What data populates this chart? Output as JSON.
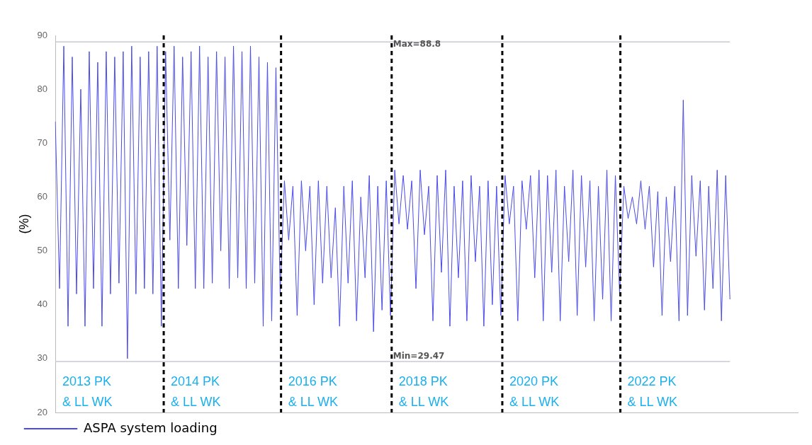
{
  "chart_data": {
    "type": "line",
    "ylabel": "(%)",
    "ylim": [
      20,
      90
    ],
    "yticks": [
      20,
      30,
      40,
      50,
      60,
      70,
      80,
      90
    ],
    "grid": false,
    "legend": "bottom left",
    "tick_labels": "y",
    "marker": "none",
    "categories": [
      null,
      null,
      null,
      null,
      null,
      null,
      null,
      null,
      null,
      null,
      null,
      null,
      null,
      null,
      null,
      null,
      null,
      null,
      null,
      null,
      null,
      null,
      null,
      null,
      null,
      null,
      null,
      null,
      null,
      null,
      null,
      null,
      null,
      null,
      null,
      null,
      null,
      null,
      null,
      null,
      null,
      null,
      null,
      null,
      null,
      null,
      null,
      null,
      null,
      null,
      null,
      null,
      null,
      null,
      null,
      null,
      null,
      null,
      null,
      null,
      null,
      null,
      null,
      null,
      null,
      null,
      null,
      null,
      null,
      null,
      null,
      null,
      null,
      null,
      null,
      null,
      null,
      null,
      null,
      null,
      null,
      null,
      null,
      null,
      null,
      null,
      null,
      null,
      null,
      null,
      null,
      null,
      null,
      null,
      null,
      null,
      null,
      null,
      null,
      null,
      null,
      null,
      null,
      null,
      null,
      null,
      null,
      null,
      null,
      null,
      null,
      null,
      null,
      null,
      null,
      null,
      null,
      null,
      null,
      null,
      null,
      null,
      null,
      null,
      null,
      null,
      null,
      null,
      null,
      null,
      null,
      null,
      null,
      null,
      null,
      null,
      null,
      null,
      null,
      null,
      null,
      null,
      null,
      null,
      null,
      null,
      null,
      null,
      null,
      null,
      null,
      null,
      null,
      null,
      null,
      null,
      null,
      null,
      null,
      null,
      null,
      null,
      null,
      null,
      null,
      null,
      null,
      null,
      null,
      null,
      null,
      null,
      null,
      null,
      null,
      null
    ],
    "series": [
      {
        "name": "ASPA system loading",
        "color": "#4a4ae8",
        "values": [
          74,
          43,
          88,
          36,
          86,
          42,
          80,
          36,
          87,
          43,
          85,
          36,
          87,
          42,
          86,
          44,
          87,
          30,
          88,
          42,
          86,
          43,
          87,
          42,
          88,
          36,
          87,
          52,
          88,
          43,
          86,
          51,
          87,
          43,
          88,
          43,
          86,
          44,
          87,
          50,
          86,
          43,
          88,
          45,
          87,
          43,
          88,
          44,
          86,
          36,
          85,
          37,
          84,
          42,
          63,
          52,
          62,
          38,
          63,
          50,
          62,
          40,
          63,
          44,
          62,
          45,
          58,
          36,
          62,
          44,
          63,
          37,
          60,
          45,
          64,
          35,
          62,
          39,
          63,
          38,
          65,
          55,
          64,
          54,
          63,
          43,
          65,
          53,
          62,
          37,
          64,
          46,
          65,
          36,
          62,
          45,
          63,
          37,
          64,
          48,
          62,
          36,
          63,
          40,
          62,
          38,
          64,
          55,
          62,
          37,
          63,
          54,
          64,
          45,
          65,
          37,
          64,
          46,
          65,
          37,
          62,
          48,
          65,
          38,
          64,
          47,
          63,
          37,
          62,
          41,
          65,
          37,
          64,
          42,
          62,
          56,
          60,
          55,
          63,
          54,
          62,
          47,
          61,
          38,
          60,
          48,
          62,
          37,
          78,
          38,
          64,
          49,
          63,
          39,
          62,
          43,
          65,
          37,
          64,
          41,
          null,
          null,
          null,
          null,
          null,
          null,
          null,
          null,
          null,
          null,
          null,
          null,
          null,
          null,
          null,
          null
        ]
      }
    ],
    "ref_lines": [
      {
        "axis": "y",
        "value": 88.8,
        "label": "Max=88.8",
        "color": "#c8c8d4",
        "line_style": "solid"
      },
      {
        "axis": "y",
        "value": 29.47,
        "label": "Min=29.47",
        "color": "#c8c8d4",
        "line_style": "solid"
      }
    ],
    "annotations": [
      "2013 PK\n& LL WK",
      "2014 PK\n& LL WK",
      "2016 PK\n& LL WK",
      "2018 PK\n& LL WK",
      "2020 PK\n& LL WK",
      "2022 PK\n& LL WK"
    ]
  }
}
